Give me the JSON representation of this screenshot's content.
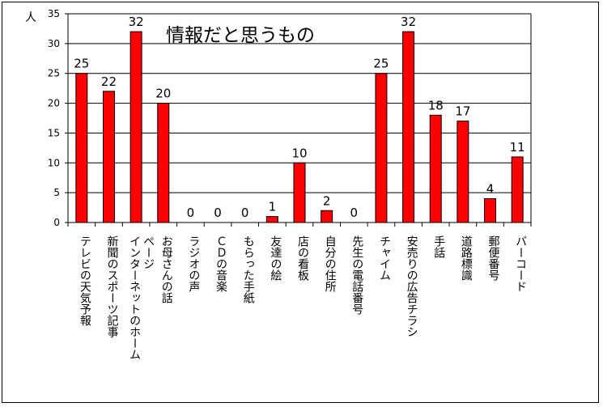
{
  "chart_data": {
    "type": "bar",
    "title": "情報だと思うもの",
    "ylabel": "人",
    "xlabel": "",
    "ylim": [
      0,
      35
    ],
    "yticks": [
      0,
      5,
      10,
      15,
      20,
      25,
      30,
      35
    ],
    "grid": true,
    "legend": "none",
    "bar_color": "#ff0000",
    "categories": [
      "テレビの天気予報",
      "新聞のスポーツ記事",
      "インターネットのホームページ",
      "お母さんの話",
      "ラジオの声",
      "ＣＤの音楽",
      "もらった手紙",
      "友達の絵",
      "店の看板",
      "自分の住所",
      "先生の電話番号",
      "チャイム",
      "安売りの広告チラシ",
      "手話",
      "道路標識",
      "郵便番号",
      "バーコード"
    ],
    "category_lines": [
      [
        "テレビの天気予報"
      ],
      [
        "新聞のスポーツ記事"
      ],
      [
        "インターネットのホーム",
        "ページ"
      ],
      [
        "お母さんの話"
      ],
      [
        "ラジオの声"
      ],
      [
        "ＣＤの音楽"
      ],
      [
        "もらった手紙"
      ],
      [
        "友達の絵"
      ],
      [
        "店の看板"
      ],
      [
        "自分の住所"
      ],
      [
        "先生の電話番号"
      ],
      [
        "チャイム"
      ],
      [
        "安売りの広告チラシ"
      ],
      [
        "手話"
      ],
      [
        "道路標識"
      ],
      [
        "郵便番号"
      ],
      [
        "バーコード"
      ]
    ],
    "values": [
      25,
      22,
      32,
      20,
      0,
      0,
      0,
      1,
      10,
      2,
      0,
      25,
      32,
      18,
      17,
      4,
      11
    ]
  }
}
